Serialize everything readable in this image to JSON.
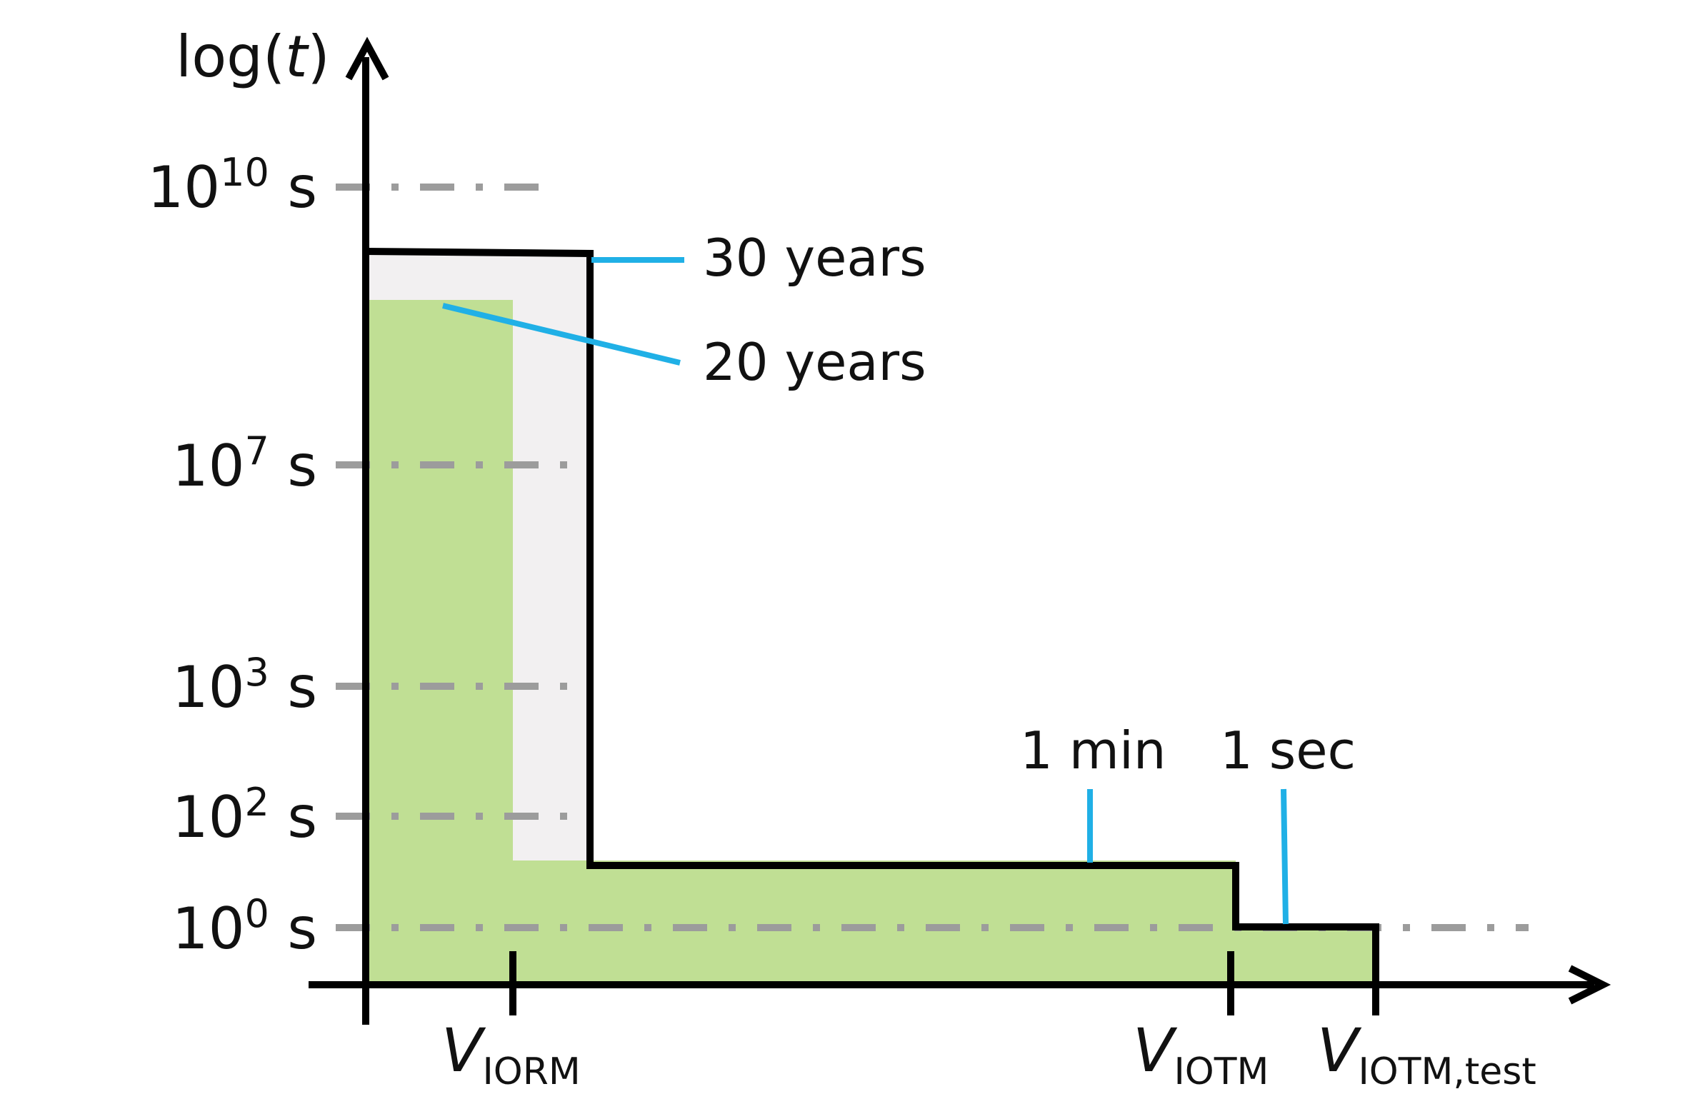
{
  "chart_data": {
    "type": "area",
    "y_axis": {
      "title_prefix": "log(",
      "title_var": "t",
      "title_suffix": ")",
      "scale": "log",
      "unit": "s",
      "ticks": [
        {
          "base": "10",
          "exp": "10",
          "unit": "s",
          "value_s": 10000000000
        },
        {
          "base": "10",
          "exp": "7",
          "unit": "s",
          "value_s": 10000000
        },
        {
          "base": "10",
          "exp": "3",
          "unit": "s",
          "value_s": 1000
        },
        {
          "base": "10",
          "exp": "2",
          "unit": "s",
          "value_s": 100
        },
        {
          "base": "10",
          "exp": "0",
          "unit": "s",
          "value_s": 1
        }
      ],
      "gridlines": "dash-dot, gray"
    },
    "x_axis": {
      "ticks": [
        {
          "main": "V",
          "sub": "IORM"
        },
        {
          "main": "V",
          "sub": "IOTM"
        },
        {
          "main": "V",
          "sub": "IOTM,test"
        }
      ]
    },
    "series": [
      {
        "role": "boundary",
        "color": "#000000",
        "steps": [
          {
            "from": "origin",
            "to": "beyond V_IORM",
            "duration": "30 years"
          },
          {
            "from": "beyond V_IORM",
            "to": "V_IOTM",
            "duration": "1 min"
          },
          {
            "from": "V_IOTM",
            "to": "V_IOTM,test",
            "duration": "1 sec"
          }
        ]
      },
      {
        "role": "operating region",
        "color": "#c0df94",
        "steps": [
          {
            "from": "origin",
            "to": "V_IORM",
            "duration": "20 years"
          },
          {
            "from": "V_IORM",
            "to": "V_IOTM",
            "duration": "1 min"
          },
          {
            "from": "V_IOTM",
            "to": "V_IOTM,test",
            "duration": "1 sec"
          }
        ]
      }
    ],
    "annotations": [
      "30 years",
      "20 years",
      "1 min",
      "1 sec"
    ],
    "colors": {
      "green_fill": "#c0df94",
      "gray_fill": "#f2f0f1",
      "callout": "#20b0e6",
      "grid": "#9c9c9c",
      "axis": "#000000"
    }
  }
}
